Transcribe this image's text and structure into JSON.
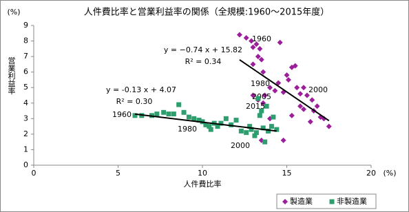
{
  "chart_data": {
    "type": "scatter",
    "title": "人件費比率と営業利益率の関係（全規模:1960〜2015年度）",
    "x_label": "人件費比率",
    "y_label": "営業利益率",
    "x_unit": "(%)",
    "y_unit": "(%)",
    "xlim": [
      0,
      20
    ],
    "xticks": [
      0,
      5,
      10,
      15,
      20
    ],
    "ylim": [
      0,
      9
    ],
    "yticks": [
      0,
      1,
      2,
      3,
      4,
      5,
      6,
      7,
      8,
      9
    ],
    "series": [
      {
        "name": "製造業",
        "color": "#9b1f9b",
        "marker": "diamond",
        "x": [
          12.2,
          12.6,
          13.0,
          13.2,
          13.4,
          13.3,
          12.9,
          14.6,
          13.5,
          13.0,
          13.6,
          15.3,
          15.5,
          15.0,
          15.1,
          14.5,
          14.0,
          14.3,
          14.8,
          13.7,
          13.0,
          13.3,
          13.6,
          15.6,
          16.0,
          16.2,
          15.8,
          16.5,
          16.8,
          16.6,
          16.0,
          17.0,
          17.2,
          17.5,
          16.4,
          15.3,
          14.0,
          13.5,
          14.8,
          15.8
        ],
        "values": [
          8.4,
          8.2,
          7.6,
          7.8,
          7.5,
          7.0,
          8.0,
          7.9,
          6.8,
          6.5,
          6.0,
          6.3,
          6.4,
          5.8,
          5.5,
          5.3,
          5.0,
          4.8,
          4.7,
          4.5,
          4.5,
          4.2,
          4.0,
          5.0,
          5.0,
          4.5,
          4.6,
          4.2,
          3.8,
          3.5,
          3.6,
          3.1,
          3.0,
          2.5,
          2.8,
          3.2,
          3.0,
          1.6,
          1.6,
          3.8
        ],
        "trend": {
          "slope": -0.74,
          "intercept": 15.82,
          "label": "y = −0.74 x + 15.82",
          "r2_label": "R² = 0.34"
        },
        "annotations": [
          "1960",
          "1980",
          "2005",
          "2015",
          "2000"
        ]
      },
      {
        "name": "非製造業",
        "color": "#2e9e6e",
        "marker": "square",
        "x": [
          6.0,
          6.4,
          7.0,
          7.3,
          7.7,
          8.0,
          8.3,
          8.6,
          8.9,
          9.2,
          9.5,
          9.8,
          10.0,
          10.2,
          10.4,
          10.5,
          10.7,
          10.9,
          11.1,
          11.4,
          11.7,
          12.0,
          12.3,
          12.6,
          12.9,
          13.2,
          13.6,
          13.9,
          14.1,
          14.4,
          13.3,
          13.5,
          13.8,
          13.4,
          14.2,
          13.1,
          13.7,
          12.8
        ],
        "values": [
          3.2,
          3.2,
          3.2,
          3.3,
          3.4,
          3.3,
          3.3,
          3.9,
          3.4,
          3.1,
          3.0,
          2.9,
          2.8,
          2.6,
          2.5,
          2.3,
          2.7,
          2.5,
          2.7,
          3.0,
          2.6,
          2.9,
          2.2,
          2.1,
          2.3,
          2.1,
          2.4,
          2.2,
          2.5,
          2.3,
          4.3,
          3.5,
          3.8,
          3.2,
          3.1,
          1.9,
          1.5,
          2.5
        ],
        "trend": {
          "slope": -0.13,
          "intercept": 4.07,
          "label": "y = -0.13 x + 4.07",
          "r2_label": "R² = 0.30"
        },
        "annotations": [
          "1960",
          "1980",
          "2000"
        ]
      }
    ]
  }
}
